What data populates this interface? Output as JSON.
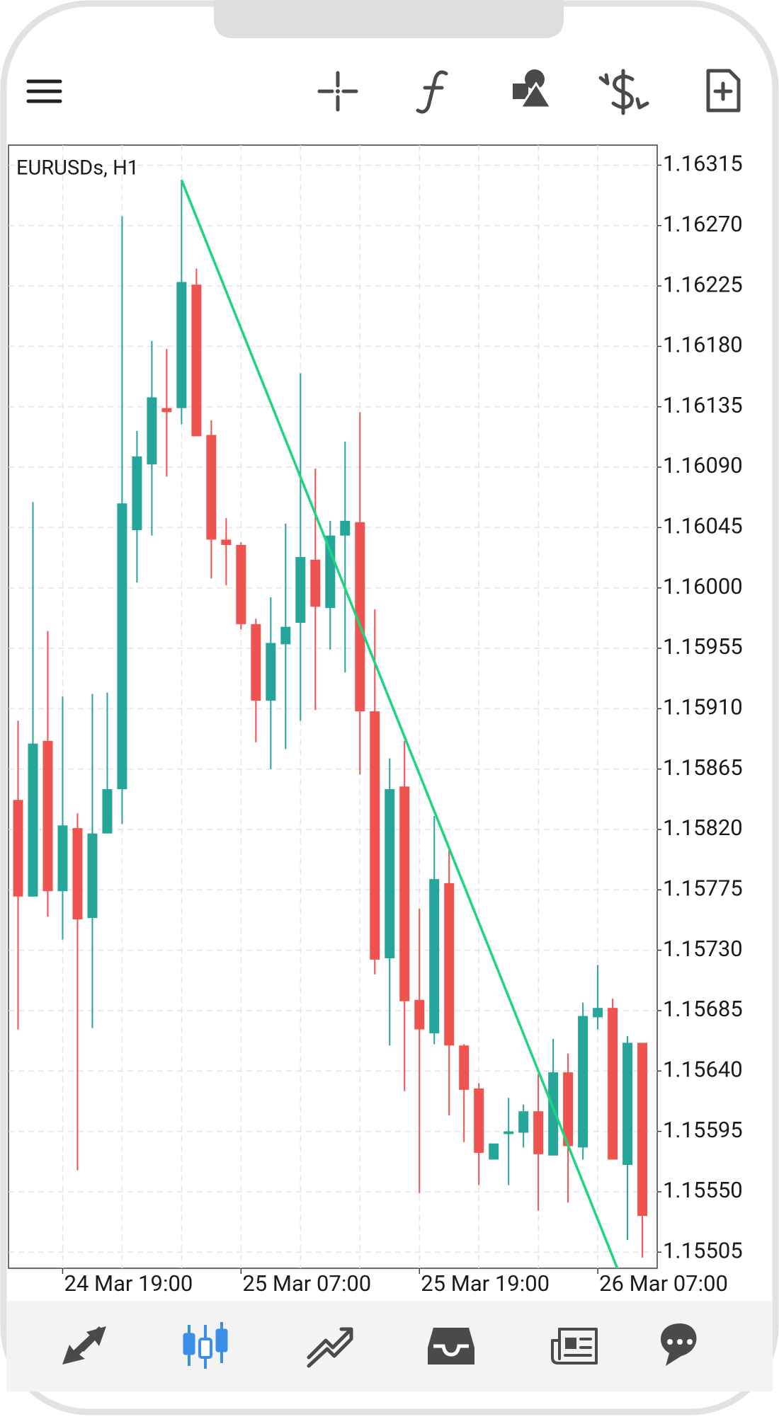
{
  "chart_data": {
    "type": "candlestick",
    "title": "EURUSDs, H1",
    "categories": [
      null,
      null,
      null,
      "24 Mar 19:00",
      null,
      null,
      null,
      null,
      null,
      null,
      null,
      null,
      null,
      null,
      null,
      "25 Mar 07:00",
      null,
      null,
      null,
      null,
      null,
      null,
      null,
      null,
      null,
      null,
      null,
      "25 Mar 19:00",
      null,
      null,
      null,
      null,
      null,
      null,
      null,
      null,
      null,
      null,
      null,
      "26 Mar 07:00",
      null,
      null,
      null
    ],
    "open": [
      1.15842,
      1.1577,
      1.15886,
      1.15774,
      1.15821,
      1.15754,
      1.15817,
      1.1585,
      1.16043,
      1.16092,
      1.16134,
      1.16134,
      1.16226,
      1.16114,
      1.16036,
      1.16032,
      1.15973,
      1.15916,
      1.15958,
      1.15974,
      1.16021,
      1.15985,
      1.16039,
      1.16049,
      1.15908,
      1.15724,
      1.15852,
      1.15693,
      1.15668,
      1.1578,
      1.15659,
      1.15627,
      1.15574,
      1.15593,
      1.15594,
      1.1561,
      1.15577,
      1.15639,
      1.15583,
      1.1568,
      1.15687,
      1.1557,
      1.15661
    ],
    "high": [
      1.15901,
      1.16064,
      1.15968,
      1.15919,
      1.15832,
      1.15921,
      1.15922,
      1.16277,
      1.16117,
      1.16184,
      1.16178,
      1.16304,
      1.16238,
      1.16125,
      1.16052,
      1.16034,
      1.15977,
      1.15993,
      1.16048,
      1.1616,
      1.16089,
      1.1605,
      1.16109,
      1.16131,
      1.15984,
      1.15873,
      1.15886,
      1.15761,
      1.1583,
      1.15805,
      1.1566,
      1.15631,
      1.15586,
      1.1562,
      1.15615,
      1.15638,
      1.15664,
      1.15653,
      1.15691,
      1.15719,
      1.15694,
      1.15666,
      1.15661
    ],
    "low": [
      1.15671,
      1.1577,
      1.15755,
      1.15738,
      1.15566,
      1.15672,
      1.15817,
      1.15824,
      1.16004,
      1.16039,
      1.16083,
      1.16122,
      1.16113,
      1.16007,
      1.16002,
      1.15969,
      1.15885,
      1.15865,
      1.1588,
      1.15901,
      1.15909,
      1.15954,
      1.15937,
      1.15861,
      1.15712,
      1.15659,
      1.15625,
      1.15549,
      1.1566,
      1.15607,
      1.15587,
      1.15555,
      1.15574,
      1.15555,
      1.15583,
      1.15536,
      1.15577,
      1.15542,
      1.15574,
      1.15671,
      1.15574,
      1.15514,
      1.15501
    ],
    "close": [
      1.1577,
      1.15884,
      1.15774,
      1.15823,
      1.15753,
      1.15817,
      1.1585,
      1.16063,
      1.16098,
      1.16142,
      1.16131,
      1.16228,
      1.16113,
      1.16036,
      1.16032,
      1.15973,
      1.15916,
      1.15959,
      1.15971,
      1.16023,
      1.15986,
      1.16039,
      1.1605,
      1.15908,
      1.15723,
      1.1585,
      1.15692,
      1.15671,
      1.15783,
      1.15659,
      1.15626,
      1.15579,
      1.15586,
      1.15595,
      1.1561,
      1.15578,
      1.15639,
      1.15584,
      1.15681,
      1.15687,
      1.15574,
      1.15661,
      1.15532
    ],
    "up_color": "#26a69a",
    "down_color": "#ef5350",
    "trendline": {
      "x": [
        11,
        41
      ],
      "values": [
        1.16304,
        1.15474
      ],
      "color": "#1fd47f"
    },
    "ylim": [
      1.15493,
      1.1633
    ],
    "yticks": [
      1.16315,
      {
        "value": 1.1627,
        "label": "1.16270"
      },
      1.16225,
      {
        "value": 1.1618,
        "label": "1.16180"
      },
      1.16135,
      {
        "value": 1.1609,
        "label": "1.16090"
      },
      1.16045,
      {
        "value": 1.16,
        "label": "1.16000"
      },
      1.15955,
      {
        "value": 1.1591,
        "label": "1.15910"
      },
      1.15865,
      {
        "value": 1.1582,
        "label": "1.15820"
      },
      1.15775,
      {
        "value": 1.1573,
        "label": "1.15730"
      },
      1.15685,
      {
        "value": 1.1564,
        "label": "1.15640"
      },
      1.15595,
      {
        "value": 1.1555,
        "label": "1.15550"
      },
      1.15505
    ],
    "grid": true
  }
}
